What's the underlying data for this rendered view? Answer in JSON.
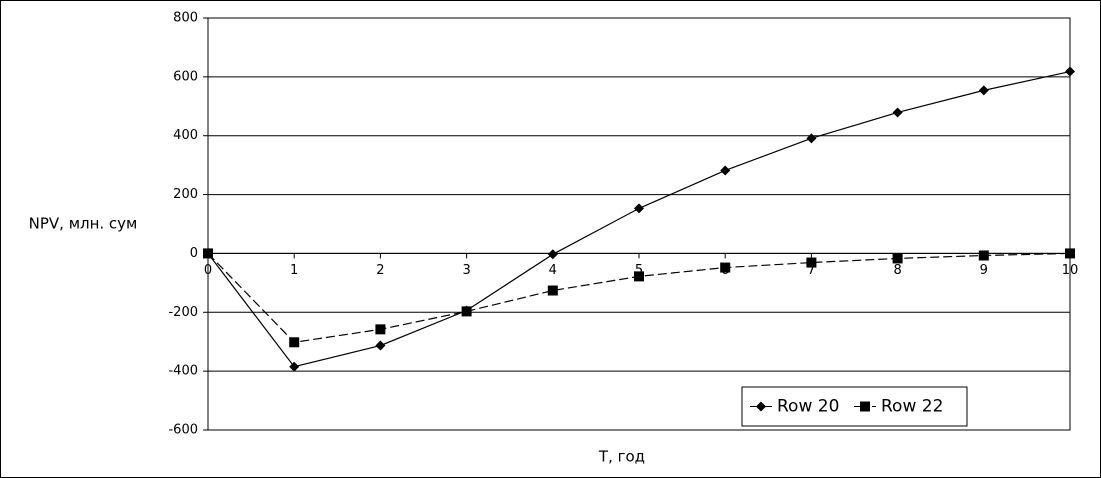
{
  "chart_data": {
    "type": "line",
    "x_label": "T, год",
    "y_label": "NPV, млн. сум",
    "x": [
      0,
      1,
      2,
      3,
      4,
      5,
      6,
      7,
      8,
      9,
      10
    ],
    "series": [
      {
        "name": "Row 20",
        "color": "#000000",
        "marker": "diamond",
        "dashed": false,
        "values": [
          0,
          -385,
          -313,
          -194,
          -3,
          153,
          282,
          391,
          479,
          554,
          618
        ]
      },
      {
        "name": "Row 22",
        "color": "#000000",
        "marker": "square",
        "dashed": true,
        "values": [
          0,
          -302,
          -258,
          -197,
          -126,
          -78,
          -48,
          -31,
          -17,
          -7,
          0
        ]
      }
    ],
    "xlim": [
      0,
      10
    ],
    "xticks": [
      0,
      1,
      2,
      3,
      4,
      5,
      6,
      7,
      8,
      9,
      10
    ],
    "ylim": [
      -600,
      800
    ],
    "yticks": [
      -600,
      -400,
      -200,
      0,
      200,
      400,
      600,
      800
    ],
    "grid": true,
    "legend": "lower-right"
  }
}
